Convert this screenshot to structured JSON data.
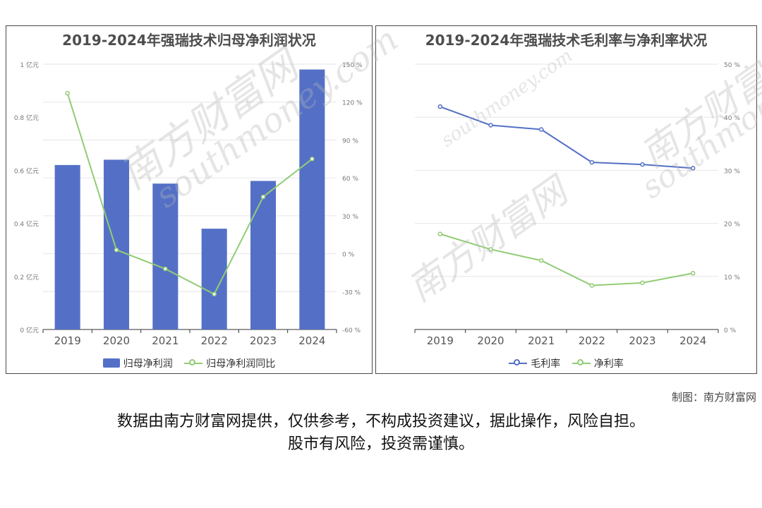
{
  "chart_data": [
    {
      "type": "bar",
      "title": "2019-2024年强瑞技术归母净利润状况",
      "categories": [
        "2019",
        "2020",
        "2021",
        "2022",
        "2023",
        "2024"
      ],
      "series": [
        {
          "name": "归母净利润",
          "type": "bar",
          "axis": "left",
          "values": [
            0.62,
            0.64,
            0.55,
            0.38,
            0.56,
            0.98
          ]
        },
        {
          "name": "归母净利润同比",
          "type": "line",
          "axis": "right",
          "values": [
            127,
            3,
            -12,
            -32,
            45,
            75
          ]
        }
      ],
      "ylim": [
        0,
        1
      ],
      "yticks": [
        "0 亿元",
        "0.2 亿元",
        "0.4 亿元",
        "0.6 亿元",
        "0.8 亿元",
        "1 亿元"
      ],
      "y2lim": [
        -60,
        150
      ],
      "y2ticks": [
        "-60 %",
        "-30 %",
        "0 %",
        "30 %",
        "60 %",
        "90 %",
        "120 %",
        "150 %"
      ],
      "grid": true,
      "legend": "bottom",
      "colors": {
        "bar": "#5470c6",
        "line": "#91cc75"
      }
    },
    {
      "type": "line",
      "title": "2019-2024年强瑞技术毛利率与净利率状况",
      "categories": [
        "2019",
        "2020",
        "2021",
        "2022",
        "2023",
        "2024"
      ],
      "series": [
        {
          "name": "毛利率",
          "values": [
            42,
            38.5,
            37.7,
            31.5,
            31.1,
            30.4
          ]
        },
        {
          "name": "净利率",
          "values": [
            18,
            15.1,
            13,
            8.3,
            8.8,
            10.6
          ]
        }
      ],
      "ylim": [
        0,
        50
      ],
      "yticks": [
        "0 %",
        "10 %",
        "20 %",
        "30 %",
        "40 %",
        "50 %"
      ],
      "grid": true,
      "legend": "bottom",
      "colors": {
        "gross": "#5470c6",
        "net": "#91cc75"
      }
    }
  ],
  "watermark": {
    "cn": "南方财富网",
    "en": "southmoney.com"
  },
  "credit": "制图：南方财富网",
  "disclaimer": {
    "line1": "数据由南方财富网提供，仅供参考，不构成投资建议，据此操作，风险自担。",
    "line2": "股市有风险，投资需谨慎。"
  }
}
